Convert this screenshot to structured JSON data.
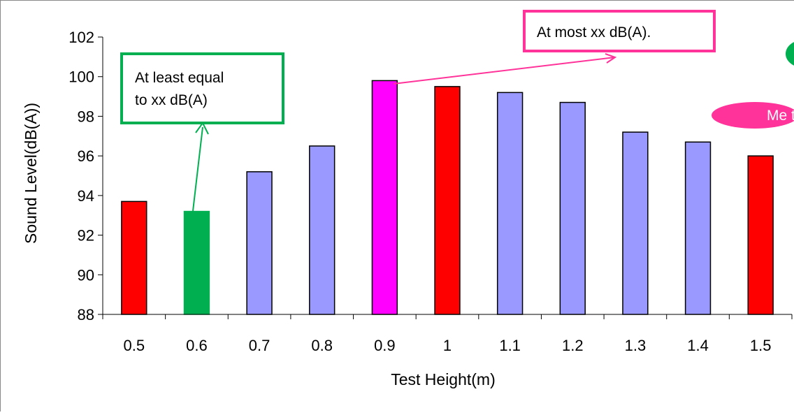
{
  "chart_data": {
    "type": "bar",
    "xlabel": "Test Height(m)",
    "ylabel": "Sound Level(dB(A))",
    "categories": [
      "0.5",
      "0.6",
      "0.7",
      "0.8",
      "0.9",
      "1",
      "1.1",
      "1.2",
      "1.3",
      "1.4",
      "1.5"
    ],
    "values": [
      93.7,
      93.2,
      95.2,
      96.5,
      99.8,
      99.5,
      99.2,
      98.7,
      97.2,
      96.7,
      96.0
    ],
    "bar_colors": [
      "#ff0000",
      "#00b050",
      "#9999ff",
      "#9999ff",
      "#ff00ff",
      "#ff0000",
      "#9999ff",
      "#9999ff",
      "#9999ff",
      "#9999ff",
      "#ff0000"
    ],
    "ylim": [
      88,
      102
    ],
    "yticks": [
      "88",
      "90",
      "92",
      "94",
      "96",
      "98",
      "100",
      "102"
    ],
    "grid": false,
    "legend": "none",
    "annotations": [
      {
        "text_lines": [
          "At least equal",
          "to xx dB(A)"
        ],
        "target_category": "0.6",
        "border_color": "#00b050",
        "shape": "box"
      },
      {
        "text_lines": [
          "At most xx dB(A)."
        ],
        "target_category": "0.9",
        "border_color": "#ff3399",
        "shape": "box"
      },
      {
        "text_lines": [
          "Me to"
        ],
        "fill_color": "#ff3399",
        "text_color": "#ffffff",
        "shape": "ellipse"
      },
      {
        "text_lines": [
          ""
        ],
        "fill_color": "#00b050",
        "shape": "ellipse"
      }
    ]
  }
}
